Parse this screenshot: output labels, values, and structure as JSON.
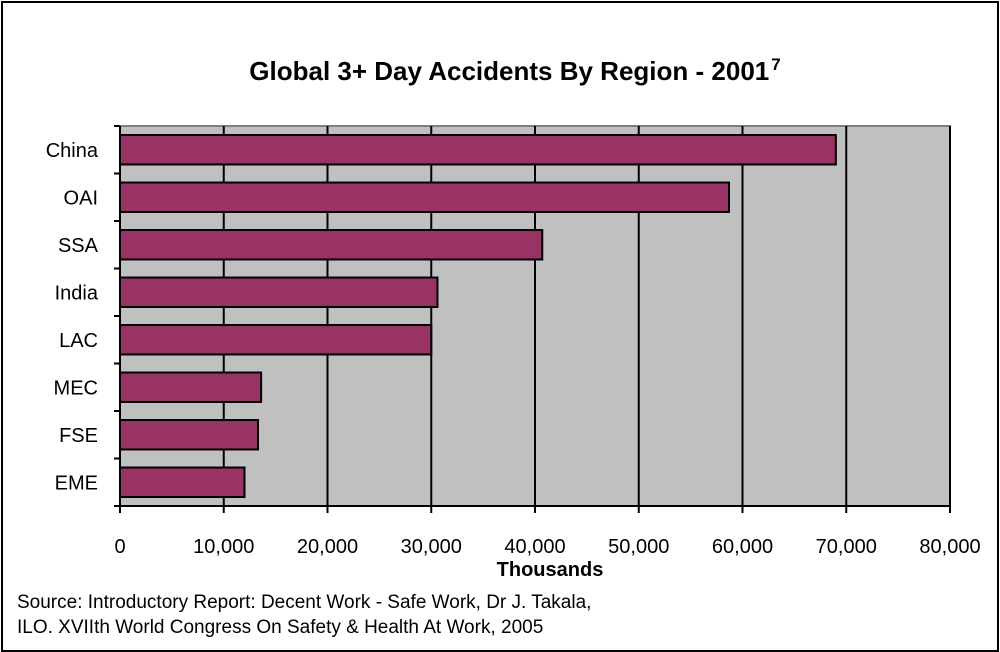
{
  "chart_data": {
    "type": "bar",
    "orientation": "horizontal",
    "title": "Global 3+ Day Accidents By Region - 2001",
    "title_superscript": "7",
    "categories": [
      "China",
      "OAI",
      "SSA",
      "India",
      "LAC",
      "MEC",
      "FSE",
      "EME"
    ],
    "values": [
      69000,
      58700,
      40700,
      30600,
      30000,
      13600,
      13300,
      12000
    ],
    "xlabel": "Thousands",
    "ylabel": "",
    "xlim": [
      0,
      80000
    ],
    "x_ticks": [
      "0",
      "10,000",
      "20,000",
      "30,000",
      "40,000",
      "50,000",
      "60,000",
      "70,000",
      "80,000"
    ],
    "grid": "vertical major gridlines",
    "legend": "none",
    "colors": {
      "bar": "#993366",
      "plot_background": "#c0c0c0",
      "gridline": "#000000"
    }
  },
  "source": {
    "line1": "Source: Introductory Report: Decent Work - Safe Work, Dr J. Takala,",
    "line2": "ILO. XVIIth World Congress On Safety & Health At Work, 2005"
  }
}
